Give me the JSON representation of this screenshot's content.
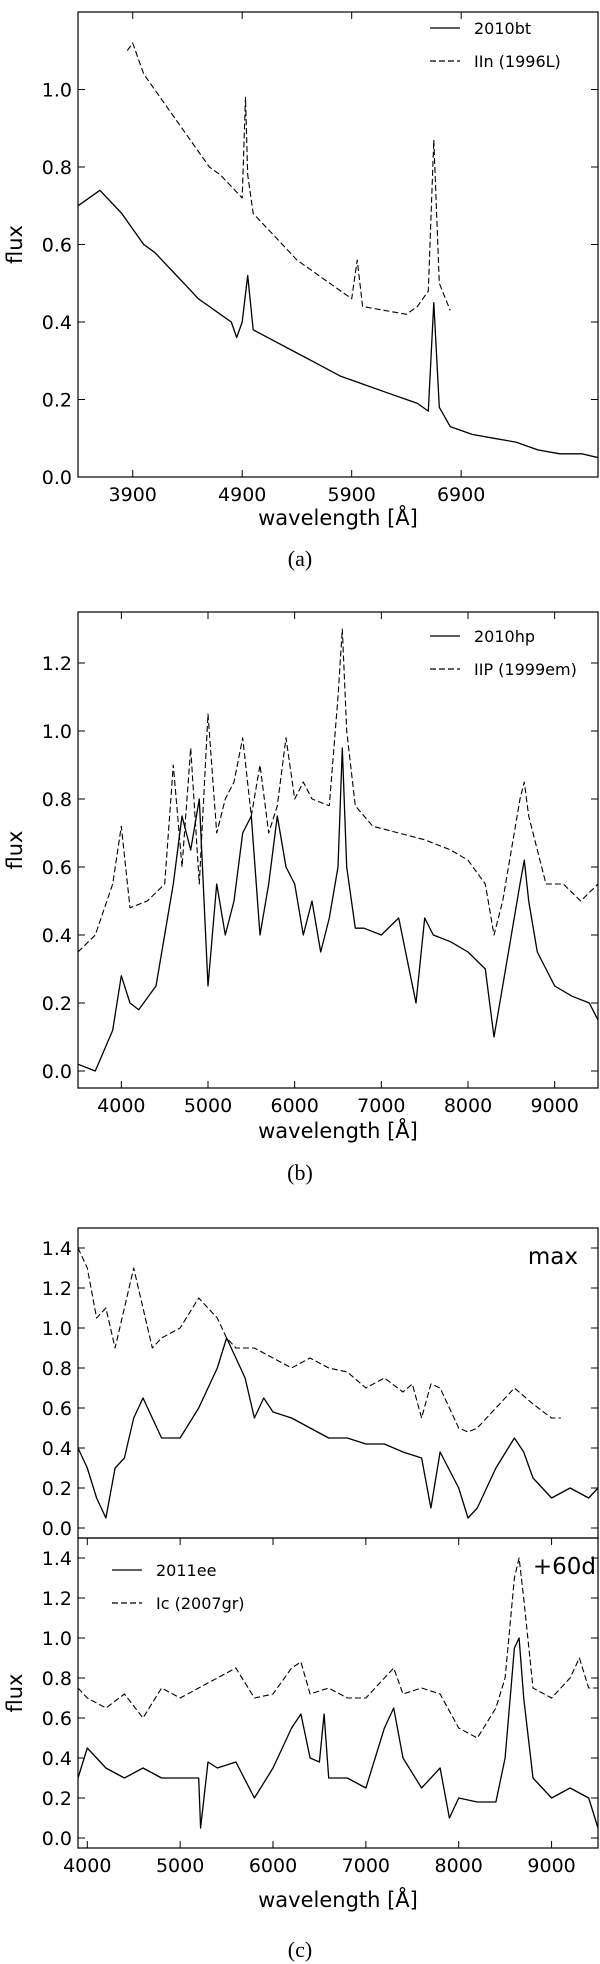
{
  "figure": {
    "panels": [
      {
        "label": "(a)"
      },
      {
        "label": "(b)"
      },
      {
        "label": "(c)"
      }
    ]
  },
  "chart_data": [
    {
      "type": "line",
      "xlabel": "wavelength [Å]",
      "ylabel": "flux",
      "xlim": [
        3400,
        8150
      ],
      "ylim": [
        0.0,
        1.2
      ],
      "xticks": [
        "3900",
        "4900",
        "5900",
        "6900"
      ],
      "yticks": [
        "0.0",
        "0.2",
        "0.4",
        "0.6",
        "0.8",
        "1.0"
      ],
      "legend_position": "top-right",
      "grid": false,
      "series": [
        {
          "name": "2010bt",
          "style": "solid",
          "x": [
            3400,
            3600,
            3800,
            3900,
            4000,
            4100,
            4200,
            4300,
            4400,
            4500,
            4600,
            4700,
            4800,
            4850,
            4900,
            4950,
            5000,
            5200,
            5400,
            5600,
            5800,
            5900,
            6000,
            6200,
            6400,
            6500,
            6600,
            6650,
            6700,
            6800,
            7000,
            7200,
            7400,
            7600,
            7800,
            8000,
            8150
          ],
          "y": [
            0.7,
            0.74,
            0.68,
            0.64,
            0.6,
            0.58,
            0.55,
            0.52,
            0.49,
            0.46,
            0.44,
            0.42,
            0.4,
            0.36,
            0.4,
            0.52,
            0.38,
            0.35,
            0.32,
            0.29,
            0.26,
            0.25,
            0.24,
            0.22,
            0.2,
            0.19,
            0.17,
            0.45,
            0.18,
            0.13,
            0.11,
            0.1,
            0.09,
            0.07,
            0.06,
            0.06,
            0.05
          ]
        },
        {
          "name": "IIn (1996L)",
          "style": "dashed",
          "x": [
            3850,
            3900,
            4000,
            4100,
            4200,
            4300,
            4400,
            4500,
            4600,
            4700,
            4800,
            4900,
            4930,
            4950,
            5000,
            5200,
            5400,
            5600,
            5800,
            5900,
            5950,
            6000,
            6200,
            6400,
            6500,
            6600,
            6650,
            6700,
            6800
          ],
          "y": [
            1.1,
            1.12,
            1.04,
            1.0,
            0.96,
            0.92,
            0.88,
            0.84,
            0.8,
            0.78,
            0.75,
            0.72,
            0.98,
            0.78,
            0.68,
            0.62,
            0.56,
            0.52,
            0.48,
            0.46,
            0.56,
            0.44,
            0.43,
            0.42,
            0.44,
            0.48,
            0.87,
            0.5,
            0.43
          ]
        }
      ]
    },
    {
      "type": "line",
      "xlabel": "wavelength [Å]",
      "ylabel": "flux",
      "xlim": [
        3500,
        9500
      ],
      "ylim": [
        -0.05,
        1.35
      ],
      "xticks": [
        "4000",
        "5000",
        "6000",
        "7000",
        "8000",
        "9000"
      ],
      "yticks": [
        "0.0",
        "0.2",
        "0.4",
        "0.6",
        "0.8",
        "1.0",
        "1.2"
      ],
      "legend_position": "top-right",
      "grid": false,
      "series": [
        {
          "name": "2010hp",
          "style": "solid",
          "x": [
            3500,
            3700,
            3900,
            4000,
            4100,
            4200,
            4400,
            4600,
            4700,
            4800,
            4900,
            5000,
            5100,
            5200,
            5300,
            5400,
            5500,
            5600,
            5700,
            5800,
            5900,
            6000,
            6100,
            6200,
            6300,
            6400,
            6500,
            6550,
            6600,
            6700,
            6800,
            7000,
            7200,
            7400,
            7500,
            7600,
            7800,
            8000,
            8200,
            8300,
            8400,
            8600,
            8650,
            8700,
            8800,
            9000,
            9200,
            9400,
            9500
          ],
          "y": [
            0.02,
            0.0,
            0.12,
            0.28,
            0.2,
            0.18,
            0.25,
            0.55,
            0.75,
            0.65,
            0.8,
            0.25,
            0.55,
            0.4,
            0.5,
            0.7,
            0.75,
            0.4,
            0.55,
            0.75,
            0.6,
            0.55,
            0.4,
            0.5,
            0.35,
            0.45,
            0.6,
            0.95,
            0.6,
            0.42,
            0.42,
            0.4,
            0.45,
            0.2,
            0.45,
            0.4,
            0.38,
            0.35,
            0.3,
            0.1,
            0.25,
            0.55,
            0.62,
            0.5,
            0.35,
            0.25,
            0.22,
            0.2,
            0.15
          ]
        },
        {
          "name": "IIP (1999em)",
          "style": "dashed",
          "x": [
            3500,
            3700,
            3900,
            4000,
            4100,
            4300,
            4500,
            4600,
            4700,
            4800,
            4900,
            5000,
            5100,
            5200,
            5300,
            5400,
            5500,
            5600,
            5700,
            5800,
            5900,
            6000,
            6100,
            6200,
            6400,
            6500,
            6550,
            6600,
            6700,
            6900,
            7200,
            7500,
            7800,
            8000,
            8200,
            8300,
            8400,
            8600,
            8650,
            8700,
            8900,
            9100,
            9300,
            9500
          ],
          "y": [
            0.35,
            0.4,
            0.55,
            0.72,
            0.48,
            0.5,
            0.55,
            0.9,
            0.6,
            0.95,
            0.55,
            1.05,
            0.7,
            0.8,
            0.85,
            0.98,
            0.75,
            0.9,
            0.7,
            0.78,
            0.98,
            0.8,
            0.85,
            0.8,
            0.78,
            1.1,
            1.3,
            1.0,
            0.78,
            0.72,
            0.7,
            0.68,
            0.65,
            0.62,
            0.55,
            0.4,
            0.5,
            0.8,
            0.85,
            0.75,
            0.55,
            0.55,
            0.5,
            0.55
          ]
        }
      ]
    },
    {
      "type": "line",
      "xlabel": "",
      "ylabel": "",
      "annotation": "max",
      "xlim": [
        3900,
        9500
      ],
      "ylim": [
        -0.05,
        1.5
      ],
      "xticks": [],
      "yticks": [
        "0.0",
        "0.2",
        "0.4",
        "0.6",
        "0.8",
        "1.0",
        "1.2",
        "1.4"
      ],
      "grid": false,
      "series": [
        {
          "style": "solid",
          "x": [
            3900,
            4000,
            4100,
            4200,
            4300,
            4400,
            4500,
            4600,
            4700,
            4800,
            5000,
            5200,
            5400,
            5500,
            5600,
            5700,
            5800,
            5900,
            6000,
            6200,
            6400,
            6600,
            6800,
            7000,
            7200,
            7400,
            7600,
            7700,
            7800,
            8000,
            8100,
            8200,
            8400,
            8600,
            8700,
            8800,
            9000,
            9200,
            9400,
            9500
          ],
          "y": [
            0.4,
            0.3,
            0.15,
            0.05,
            0.3,
            0.35,
            0.55,
            0.65,
            0.55,
            0.45,
            0.45,
            0.6,
            0.8,
            0.95,
            0.85,
            0.75,
            0.55,
            0.65,
            0.58,
            0.55,
            0.5,
            0.45,
            0.45,
            0.42,
            0.42,
            0.38,
            0.35,
            0.1,
            0.38,
            0.2,
            0.05,
            0.1,
            0.3,
            0.45,
            0.38,
            0.25,
            0.15,
            0.2,
            0.15,
            0.2
          ]
        },
        {
          "style": "dashed",
          "x": [
            3900,
            4000,
            4100,
            4200,
            4300,
            4400,
            4500,
            4600,
            4700,
            4800,
            5000,
            5200,
            5400,
            5500,
            5600,
            5800,
            6000,
            6200,
            6400,
            6600,
            6800,
            7000,
            7200,
            7400,
            7500,
            7600,
            7700,
            7800,
            8000,
            8100,
            8200,
            8400,
            8600,
            8800,
            9000,
            9100
          ],
          "y": [
            1.4,
            1.3,
            1.05,
            1.1,
            0.9,
            1.1,
            1.3,
            1.1,
            0.9,
            0.95,
            1.0,
            1.15,
            1.05,
            0.95,
            0.9,
            0.9,
            0.85,
            0.8,
            0.85,
            0.8,
            0.78,
            0.7,
            0.75,
            0.68,
            0.72,
            0.55,
            0.72,
            0.7,
            0.5,
            0.48,
            0.5,
            0.6,
            0.7,
            0.62,
            0.55,
            0.55
          ]
        }
      ]
    },
    {
      "type": "line",
      "xlabel": "wavelength [Å]",
      "ylabel": "flux",
      "annotation": "+60d",
      "xlim": [
        3900,
        9500
      ],
      "ylim": [
        -0.05,
        1.5
      ],
      "xticks": [
        "4000",
        "5000",
        "6000",
        "7000",
        "8000",
        "9000"
      ],
      "yticks": [
        "0.0",
        "0.2",
        "0.4",
        "0.6",
        "0.8",
        "1.0",
        "1.2",
        "1.4"
      ],
      "legend_position": "top-left",
      "grid": false,
      "series": [
        {
          "name": "2011ee",
          "style": "solid",
          "x": [
            3900,
            4000,
            4200,
            4400,
            4600,
            4800,
            5000,
            5200,
            5220,
            5300,
            5400,
            5600,
            5800,
            6000,
            6200,
            6300,
            6400,
            6500,
            6550,
            6600,
            6800,
            7000,
            7200,
            7300,
            7400,
            7600,
            7800,
            7900,
            8000,
            8200,
            8400,
            8500,
            8600,
            8650,
            8700,
            8800,
            9000,
            9200,
            9400,
            9500
          ],
          "y": [
            0.3,
            0.45,
            0.35,
            0.3,
            0.35,
            0.3,
            0.3,
            0.3,
            0.05,
            0.38,
            0.35,
            0.38,
            0.2,
            0.35,
            0.55,
            0.62,
            0.4,
            0.38,
            0.62,
            0.3,
            0.3,
            0.25,
            0.55,
            0.65,
            0.4,
            0.25,
            0.35,
            0.1,
            0.2,
            0.18,
            0.18,
            0.4,
            0.95,
            1.0,
            0.7,
            0.3,
            0.2,
            0.25,
            0.2,
            0.05
          ]
        },
        {
          "name": "Ic (2007gr)",
          "style": "dashed",
          "x": [
            3900,
            4000,
            4200,
            4400,
            4600,
            4800,
            5000,
            5200,
            5400,
            5600,
            5800,
            6000,
            6200,
            6300,
            6400,
            6600,
            6800,
            7000,
            7200,
            7300,
            7400,
            7600,
            7800,
            8000,
            8200,
            8400,
            8500,
            8600,
            8650,
            8700,
            8800,
            9000,
            9200,
            9300,
            9400,
            9500
          ],
          "y": [
            0.75,
            0.7,
            0.65,
            0.72,
            0.6,
            0.75,
            0.7,
            0.75,
            0.8,
            0.85,
            0.7,
            0.72,
            0.85,
            0.88,
            0.72,
            0.75,
            0.7,
            0.7,
            0.8,
            0.85,
            0.72,
            0.75,
            0.72,
            0.55,
            0.5,
            0.65,
            0.8,
            1.3,
            1.4,
            1.2,
            0.75,
            0.7,
            0.8,
            0.9,
            0.75,
            0.75
          ]
        }
      ]
    }
  ]
}
